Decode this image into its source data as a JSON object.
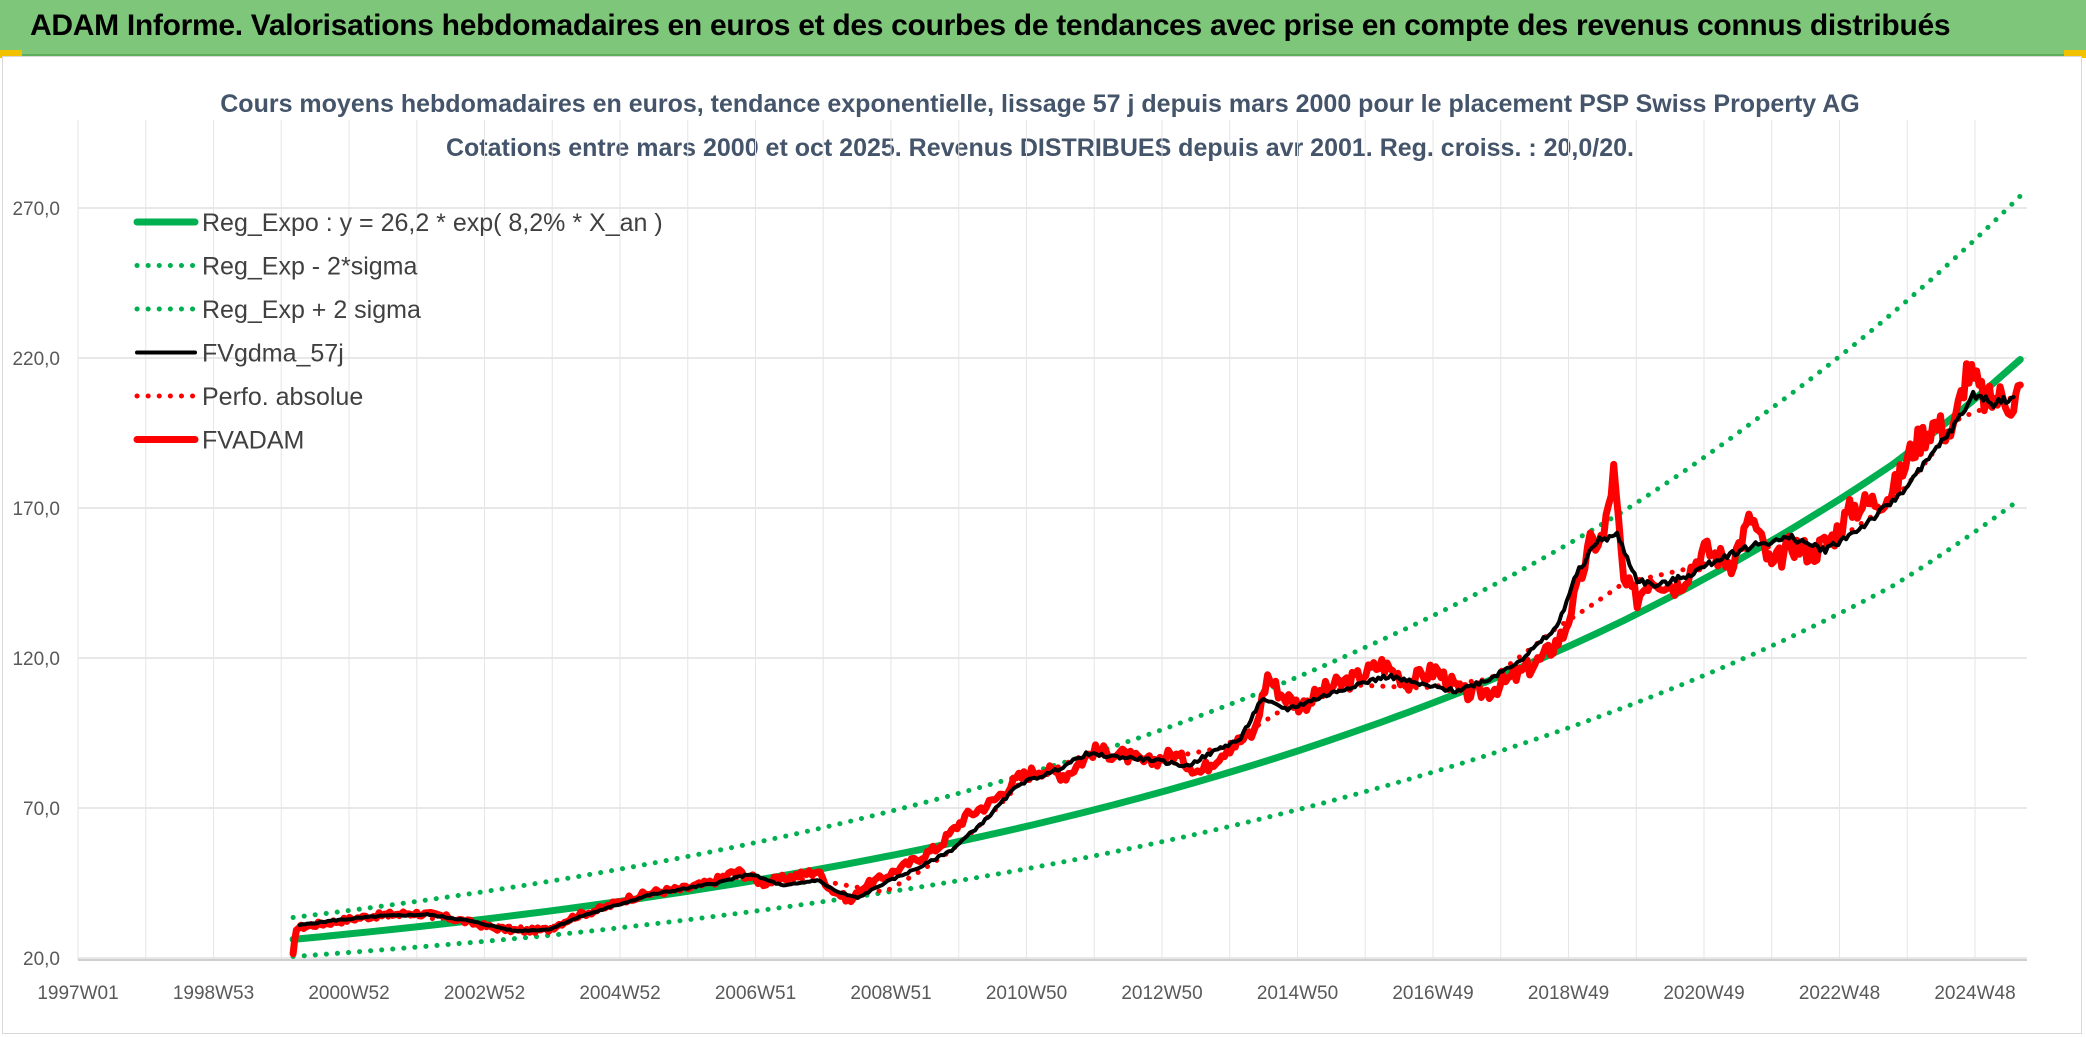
{
  "header": {
    "title": "ADAM Informe. Valorisations hebdomadaires en euros et des courbes de tendances avec prise en compte des revenus connus distribués"
  },
  "colors": {
    "banner": "#7dc67a",
    "trend": "#00b050",
    "price": "#ff0000",
    "smooth": "#000000",
    "grid": "#d9d9d9"
  },
  "chart_data": {
    "type": "line",
    "title": "Cours moyens hebdomadaires en euros, tendance exponentielle, lissage 57 j depuis mars 2000 pour le placement PSP Swiss Property AG",
    "subtitle": "Cotations entre mars 2000 et oct 2025. Revenus DISTRIBUES depuis avr 2001. Reg. croiss. : 20,0/20.",
    "xlabel": "",
    "ylabel": "",
    "ylim": [
      20,
      290
    ],
    "y_ticks": [
      "20,0",
      "70,0",
      "120,0",
      "170,0",
      "220,0",
      "270,0"
    ],
    "x_ticks": [
      "1997W01",
      "1998W53",
      "2000W52",
      "2002W52",
      "2004W52",
      "2006W51",
      "2008W51",
      "2010W50",
      "2012W50",
      "2014W50",
      "2016W49",
      "2018W49",
      "2020W49",
      "2022W48",
      "2024W48"
    ],
    "xlim": [
      1997.0,
      2026.0
    ],
    "grid": true,
    "legend_position": "top-left",
    "series": [
      {
        "name": "Reg_Expo : y = 26,2 * exp( 8,2% *  X_an )",
        "style": "solid-thick",
        "color": "#00b050",
        "x": [
          2000.2,
          2004,
          2008,
          2012,
          2016,
          2020,
          2022,
          2024,
          2025.9
        ],
        "y": [
          26.2,
          35.6,
          49.5,
          68.7,
          95.5,
          132.5,
          156.5,
          184.5,
          219.5
        ]
      },
      {
        "name": "Reg_Exp - 2*sigma",
        "style": "dotted",
        "color": "#00b050",
        "x": [
          2000.2,
          2004,
          2008,
          2012,
          2016,
          2020,
          2022,
          2024,
          2025.9
        ],
        "y": [
          20.5,
          27.5,
          38.5,
          53.5,
          74.5,
          103.5,
          122,
          144,
          173
        ]
      },
      {
        "name": "Reg_Exp + 2 sigma",
        "style": "dotted",
        "color": "#00b050",
        "x": [
          2000.2,
          2004,
          2008,
          2012,
          2016,
          2020,
          2022,
          2024,
          2025.9
        ],
        "y": [
          33.5,
          45.5,
          63,
          87.5,
          122,
          169,
          200,
          235,
          274
        ]
      },
      {
        "name": "FVgdma_57j",
        "style": "solid-medium",
        "color": "#000000",
        "x": [
          2000.3,
          2000.8,
          2001.5,
          2002.2,
          2002.8,
          2003.5,
          2004,
          2004.5,
          2005,
          2005.5,
          2006,
          2006.5,
          2007,
          2007.5,
          2008,
          2008.3,
          2008.6,
          2009,
          2009.5,
          2010,
          2010.5,
          2011,
          2011.5,
          2012,
          2012.5,
          2013,
          2013.5,
          2014,
          2014.3,
          2014.6,
          2015,
          2015.5,
          2016,
          2016.5,
          2017,
          2017.5,
          2018,
          2018.5,
          2019,
          2019.3,
          2019.6,
          2019.9,
          2020.2,
          2020.5,
          2021,
          2021.5,
          2022,
          2022.5,
          2023,
          2023.5,
          2024,
          2024.5,
          2025,
          2025.2,
          2025.5,
          2025.8
        ],
        "y": [
          31,
          32.5,
          34,
          34.5,
          32.5,
          29,
          29.5,
          34,
          37.5,
          41,
          43,
          45,
          48,
          44,
          46,
          42,
          40,
          45,
          50,
          56,
          66,
          78,
          82,
          88,
          87,
          86,
          84,
          90,
          93,
          106,
          103,
          107,
          111,
          114,
          111,
          109,
          113,
          120,
          130,
          148,
          159,
          161,
          146,
          144,
          148,
          154,
          158,
          160,
          156,
          163,
          172,
          185,
          200,
          208,
          205,
          207
        ]
      },
      {
        "name": "Perfo. absolue",
        "style": "dotted",
        "color": "#ff0000",
        "x": [
          2000.3,
          2001,
          2002,
          2003,
          2004,
          2005,
          2006,
          2007,
          2008,
          2009,
          2010,
          2011,
          2012,
          2013,
          2014,
          2015,
          2016,
          2017,
          2018,
          2019,
          2020,
          2021,
          2022,
          2023,
          2024,
          2025,
          2025.8
        ],
        "y": [
          31,
          33,
          34,
          31,
          30,
          38,
          43,
          47,
          46,
          42,
          56,
          78,
          88,
          86,
          90,
          104,
          111,
          110,
          113,
          130,
          145,
          150,
          157,
          157,
          172,
          200,
          207
        ]
      },
      {
        "name": "FVADAM",
        "style": "solid-thick",
        "color": "#ff0000",
        "x": [
          2000.2,
          2000.25,
          2000.5,
          2000.8,
          2001.2,
          2001.6,
          2002,
          2002.4,
          2002.8,
          2003.2,
          2003.6,
          2004,
          2004.4,
          2004.8,
          2005.2,
          2005.6,
          2006,
          2006.4,
          2006.8,
          2007.2,
          2007.6,
          2008,
          2008.2,
          2008.5,
          2008.7,
          2009,
          2009.4,
          2009.8,
          2010.2,
          2010.6,
          2011,
          2011.3,
          2011.7,
          2012.1,
          2012.5,
          2012.9,
          2013.3,
          2013.7,
          2014.1,
          2014.5,
          2014.7,
          2014.9,
          2015.2,
          2015.6,
          2016,
          2016.4,
          2016.8,
          2017.2,
          2017.6,
          2018,
          2018.4,
          2018.8,
          2019.1,
          2019.3,
          2019.5,
          2019.7,
          2019.85,
          2020,
          2020.2,
          2020.4,
          2020.8,
          2021.2,
          2021.6,
          2021.9,
          2022.2,
          2022.5,
          2022.8,
          2023.1,
          2023.4,
          2023.7,
          2024,
          2024.3,
          2024.6,
          2024.9,
          2025.1,
          2025.25,
          2025.4,
          2025.6,
          2025.8,
          2025.9
        ],
        "y": [
          21,
          30,
          31,
          32,
          33.5,
          34.5,
          35,
          34,
          32,
          30,
          29,
          29.5,
          34,
          36.5,
          40,
          42,
          43,
          45,
          49,
          45,
          47,
          49,
          43,
          39,
          44,
          47,
          52,
          57,
          67,
          72,
          80,
          83,
          81,
          89,
          88,
          85,
          88,
          82,
          90,
          95,
          114,
          108,
          104,
          110,
          113,
          118,
          112,
          116,
          108,
          109,
          114,
          120,
          128,
          142,
          158,
          160,
          182,
          145,
          140,
          147,
          144,
          156,
          152,
          167,
          150,
          158,
          155,
          160,
          170,
          172,
          175,
          190,
          198,
          195,
          216,
          211,
          205,
          207,
          205,
          211
        ]
      }
    ]
  }
}
